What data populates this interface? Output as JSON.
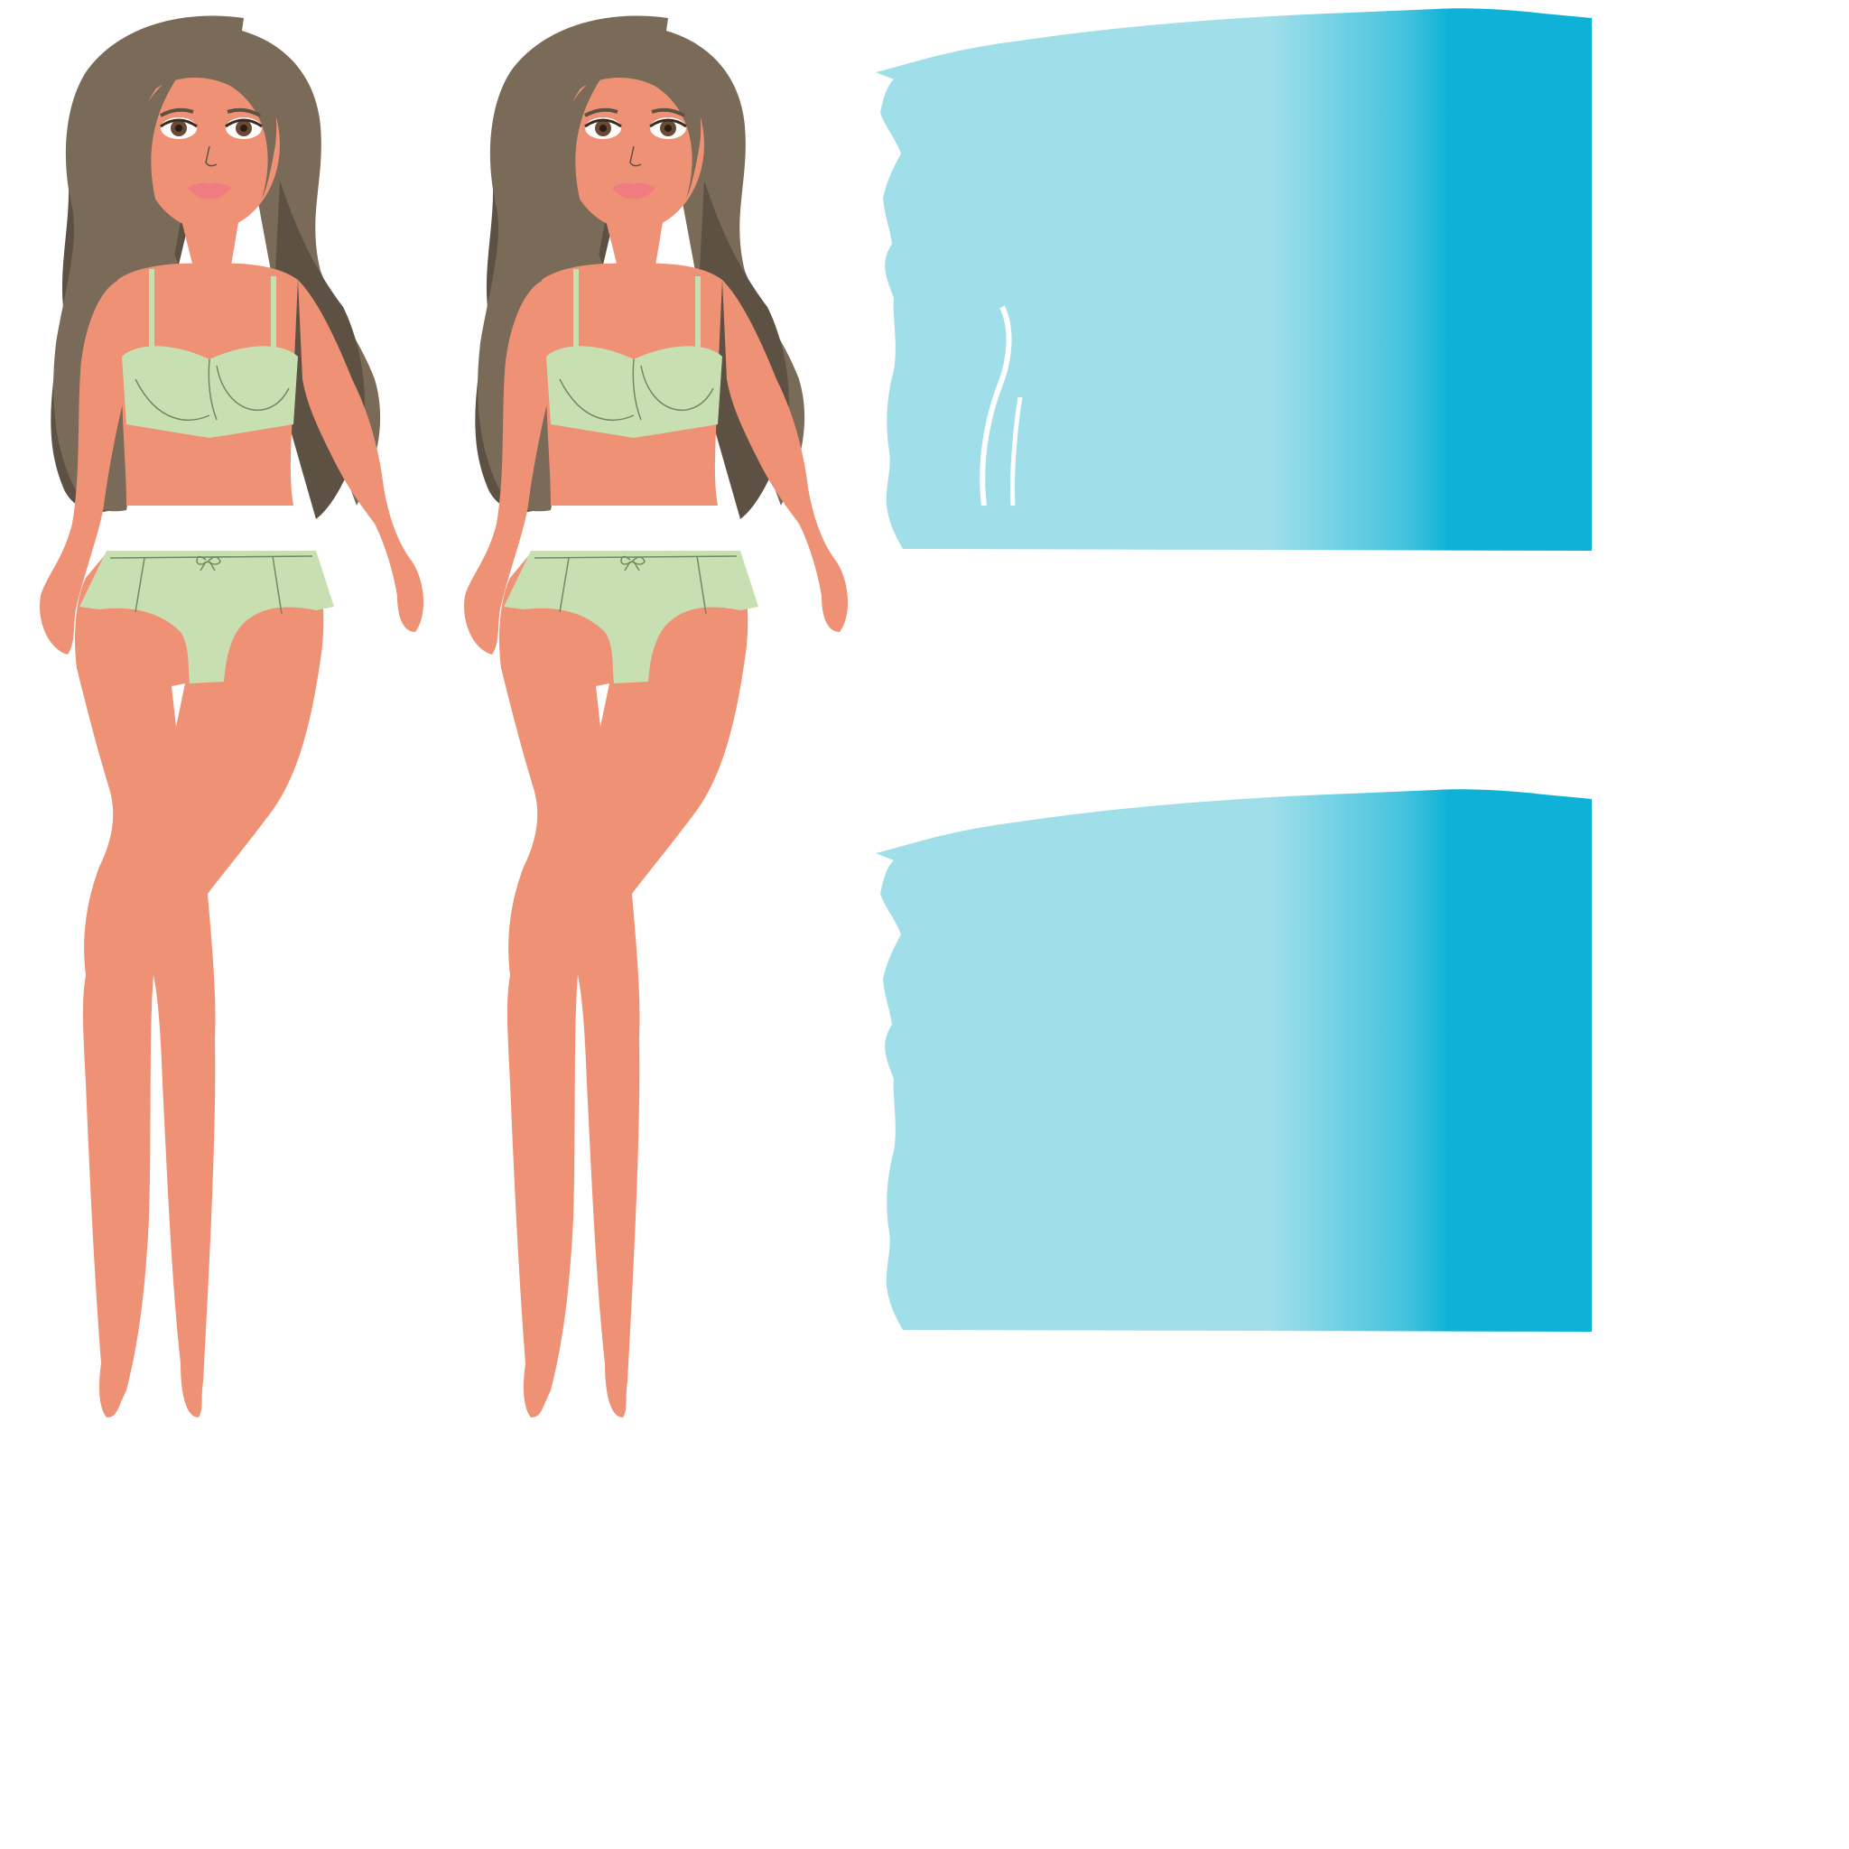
{
  "sheet": {
    "background": "#ffffff",
    "sprites": [
      {
        "name": "girl-figure-left",
        "kind": "character"
      },
      {
        "name": "girl-figure-right",
        "kind": "character"
      },
      {
        "name": "water-panel-top",
        "kind": "background-tile"
      },
      {
        "name": "water-panel-bottom",
        "kind": "background-tile"
      }
    ]
  },
  "colors": {
    "hair": "#7a6a58",
    "hair_shadow": "#5d5144",
    "skin": "#ef9175",
    "lingerie": "#c8dfb2",
    "lingerie_line": "#6f8a63",
    "lips": "#ee7c80",
    "eye_iris": "#6a4a35",
    "water_light": "#a0dfea",
    "water_dark": "#0eb2d6"
  }
}
